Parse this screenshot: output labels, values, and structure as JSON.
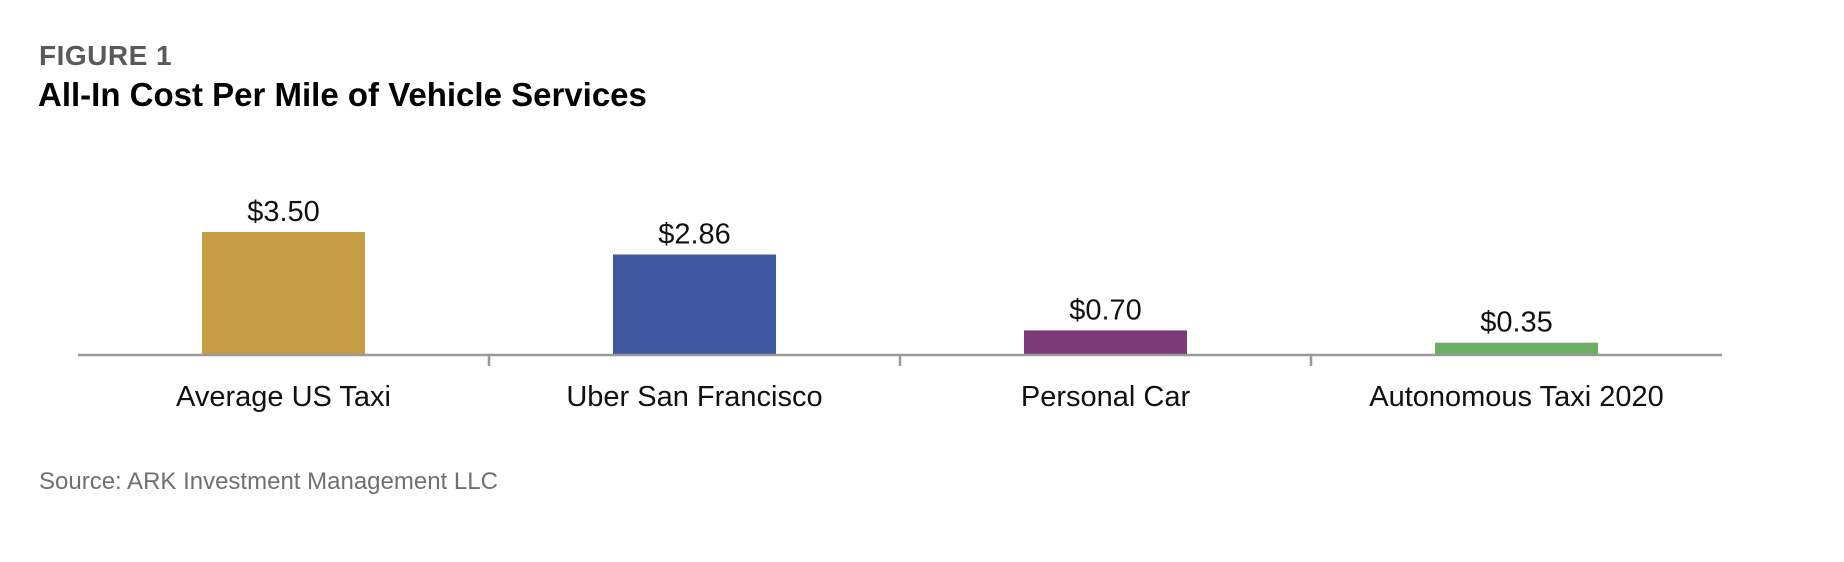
{
  "figure_label": "FIGURE 1",
  "source": "Source: ARK Investment Management LLC",
  "chart_data": {
    "type": "bar",
    "title": "All-In Cost Per Mile of Vehicle Services",
    "categories": [
      "Average US Taxi",
      "Uber San Francisco",
      "Personal Car",
      "Autonomous  Taxi 2020"
    ],
    "values": [
      3.5,
      2.86,
      0.7,
      0.35
    ],
    "value_labels": [
      "$3.50",
      "$2.86",
      "$0.70",
      "$0.35"
    ],
    "colors": [
      "#C69C45",
      "#3F56A0",
      "#7B3B77",
      "#6DAE65"
    ],
    "xlabel": "",
    "ylabel": "",
    "ylim": [
      0,
      3.5
    ],
    "grid": false,
    "legend": "none"
  }
}
